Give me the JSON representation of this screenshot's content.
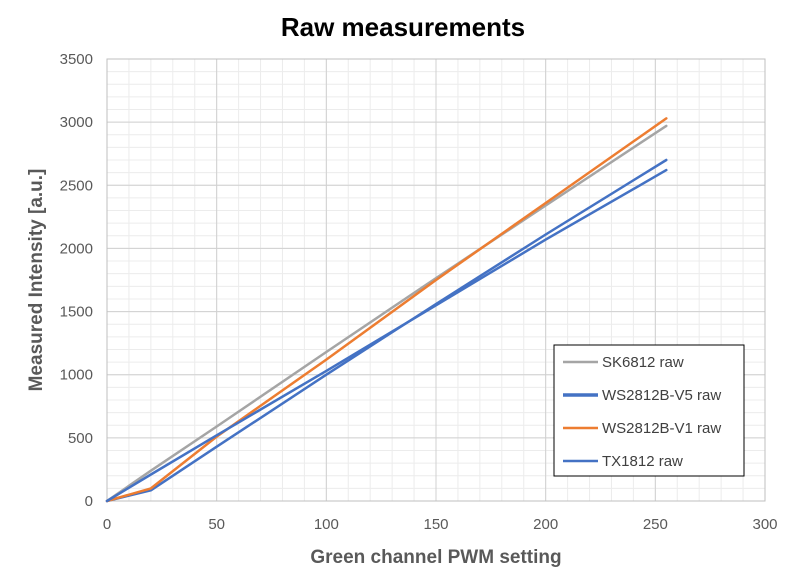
{
  "chart_data": {
    "type": "line",
    "title": "Raw measurements",
    "xlabel": "Green channel PWM setting",
    "ylabel": "Measured Intensity [a.u.]",
    "xlim": [
      0,
      300
    ],
    "ylim": [
      0,
      3500
    ],
    "xticks": [
      0,
      50,
      100,
      150,
      200,
      250,
      300
    ],
    "yticks": [
      0,
      500,
      1000,
      1500,
      2000,
      2500,
      3000,
      3500
    ],
    "xtick_labels": [
      "0",
      "50",
      "100",
      "150",
      "200",
      "250",
      "300"
    ],
    "ytick_labels": [
      "0",
      "500",
      "1000",
      "1500",
      "2000",
      "2500",
      "3000",
      "3500"
    ],
    "grid": true,
    "minor_grid": true,
    "legend_position": "lower-right",
    "series": [
      {
        "name": "SK6812 raw",
        "color": "#a5a5a5",
        "x": [
          0,
          20,
          50,
          100,
          150,
          200,
          255
        ],
        "y": [
          0,
          240,
          590,
          1180,
          1765,
          2340,
          2970
        ]
      },
      {
        "name": "WS2812B-V5 raw",
        "color": "#4472c4",
        "x": [
          0,
          20,
          50,
          100,
          150,
          200,
          255
        ],
        "y": [
          0,
          85,
          430,
          1000,
          1560,
          2110,
          2700
        ]
      },
      {
        "name": "WS2812B-V1 raw",
        "color": "#ed7d31",
        "x": [
          0,
          20,
          50,
          100,
          150,
          200,
          255
        ],
        "y": [
          0,
          100,
          510,
          1120,
          1750,
          2360,
          3030
        ]
      },
      {
        "name": "TX1812 raw",
        "color": "#4472c4",
        "x": [
          0,
          20,
          50,
          100,
          150,
          200,
          255
        ],
        "y": [
          0,
          210,
          520,
          1030,
          1550,
          2070,
          2620
        ]
      }
    ]
  }
}
